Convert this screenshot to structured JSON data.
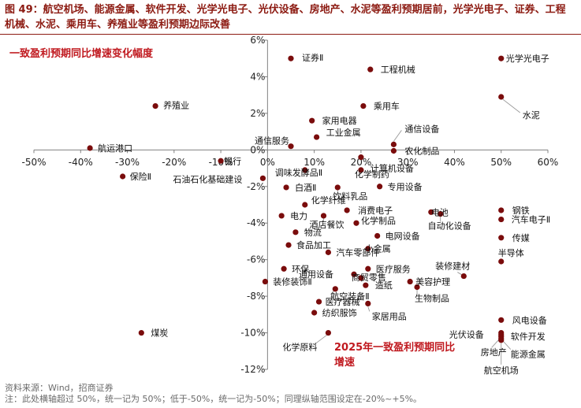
{
  "figure": {
    "title": "图 49：航空机场、能源金属、软件开发、光学光电子、光伏设备、房地产、水泥等盈利预期居前，光学光电子、证券、工程机械、水泥、乘用车、养殖业等盈利预期边际改善"
  },
  "source": "资料来源：Wind，招商证券",
  "note": "注：此处横轴超过 50%，统一记为 50%；低于-50%，统一记为-50%；同理纵轴范围设定在-20%~+5%。",
  "colors": {
    "marker": "#7a0c0c",
    "accent": "#c0191f",
    "axis": "#808080",
    "leader": "#9a9a9a"
  },
  "chart_data": {
    "type": "scatter",
    "ylabel": "一致盈利预期同比增速变化幅度",
    "xlabel": "2025年一致盈利预期同比增速",
    "xlim": [
      -50,
      60
    ],
    "ylim": [
      -12,
      6
    ],
    "xticks": [
      -50,
      -40,
      -30,
      -20,
      -10,
      0,
      10,
      20,
      30,
      40,
      50,
      60
    ],
    "yticks": [
      6,
      4,
      2,
      0,
      -2,
      -4,
      -6,
      -8,
      -10,
      -12
    ],
    "tick_suffix": "%",
    "grid": false,
    "points": [
      {
        "label": "光学光电子",
        "x": 50,
        "y": 5.0
      },
      {
        "label": "证券Ⅱ",
        "x": 5,
        "y": 5.0
      },
      {
        "label": "工程机械",
        "x": 22,
        "y": 4.4
      },
      {
        "label": "养殖业",
        "x": -24,
        "y": 2.4
      },
      {
        "label": "乘用车",
        "x": 20.5,
        "y": 2.4
      },
      {
        "label": "水泥",
        "x": 50,
        "y": 2.9
      },
      {
        "label": "家用电器",
        "x": 9.5,
        "y": 1.6
      },
      {
        "label": "通信设备",
        "x": 27,
        "y": 0.3
      },
      {
        "label": "工业金属",
        "x": 10.5,
        "y": 0.7
      },
      {
        "label": "通信服务",
        "x": 5,
        "y": 0.2
      },
      {
        "label": "航运港口",
        "x": -38,
        "y": 0.1
      },
      {
        "label": "农化制品",
        "x": 27,
        "y": -0.05
      },
      {
        "label": "计算机设备",
        "x": 20,
        "y": -0.4
      },
      {
        "label": "银行",
        "x": -10,
        "y": -0.6
      },
      {
        "label": "调味发酵品Ⅱ",
        "x": 8,
        "y": -1.1
      },
      {
        "label": "化学制药",
        "x": 20,
        "y": -1.1
      },
      {
        "label": "保险Ⅱ",
        "x": -31,
        "y": -1.45
      },
      {
        "label": "石油石化基础建设",
        "x": -1,
        "y": -1.55
      },
      {
        "label": "白酒Ⅱ",
        "x": 4,
        "y": -2.05
      },
      {
        "label": "饮料乳品",
        "x": 15,
        "y": -2.05
      },
      {
        "label": "专用设备",
        "x": 24,
        "y": -2.0
      },
      {
        "label": "钢铁",
        "x": 50,
        "y": -3.3
      },
      {
        "label": "化学纤维",
        "x": 8,
        "y": -3.0
      },
      {
        "label": "消费电子",
        "x": 17,
        "y": -3.3
      },
      {
        "label": "电力",
        "x": 3,
        "y": -3.6
      },
      {
        "label": "酒店餐饮",
        "x": 12,
        "y": -3.6
      },
      {
        "label": "电池",
        "x": 35,
        "y": -3.4
      },
      {
        "label": "汽车电子Ⅱ",
        "x": 50,
        "y": -3.8
      },
      {
        "label": "化学制品",
        "x": 19,
        "y": -4.0
      },
      {
        "label": "自动化设备",
        "x": 37,
        "y": -3.5
      },
      {
        "label": "物流",
        "x": 6,
        "y": -4.5
      },
      {
        "label": "电网设备",
        "x": 23.5,
        "y": -4.7
      },
      {
        "label": "传媒",
        "x": 50,
        "y": -4.8
      },
      {
        "label": "食品加工",
        "x": 4.5,
        "y": -5.2
      },
      {
        "label": "汽车零部件",
        "x": 13,
        "y": -5.6
      },
      {
        "label": "小金属",
        "x": 21.5,
        "y": -5.4
      },
      {
        "label": "半导体",
        "x": 50,
        "y": -6.1
      },
      {
        "label": "医疗服务",
        "x": 21.5,
        "y": -6.5
      },
      {
        "label": "环保",
        "x": 3.5,
        "y": -6.5
      },
      {
        "label": "通用设备",
        "x": 18.5,
        "y": -6.8
      },
      {
        "label": "装修装饰Ⅱ",
        "x": -0.5,
        "y": -7.2
      },
      {
        "label": "商贸零售",
        "x": 20,
        "y": -7.0
      },
      {
        "label": "装修建材",
        "x": 42,
        "y": -6.9
      },
      {
        "label": "美容护理",
        "x": 30.5,
        "y": -7.2
      },
      {
        "label": "航空装备Ⅱ",
        "x": 14.5,
        "y": -7.6
      },
      {
        "label": "造纸",
        "x": 21,
        "y": -7.4
      },
      {
        "label": "生物制品",
        "x": 32,
        "y": -7.5
      },
      {
        "label": "医疗器械",
        "x": 11,
        "y": -8.3
      },
      {
        "label": "纺织服饰",
        "x": 10,
        "y": -8.9
      },
      {
        "label": "家居用品",
        "x": 21.5,
        "y": -8.4
      },
      {
        "label": "风电设备",
        "x": 50,
        "y": -9.3
      },
      {
        "label": "煤炭",
        "x": -27,
        "y": -10.0
      },
      {
        "label": "化学原料",
        "x": 13,
        "y": -10.0
      },
      {
        "label": "光伏设备",
        "x": 50,
        "y": -10.0
      },
      {
        "label": "软件开发",
        "x": 50,
        "y": -10.1
      },
      {
        "label": "房地产",
        "x": 50,
        "y": -10.2
      },
      {
        "label": "能源金属",
        "x": 50,
        "y": -10.3
      },
      {
        "label": "航空机场",
        "x": 50,
        "y": -10.4
      }
    ]
  }
}
